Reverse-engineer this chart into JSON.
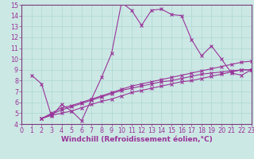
{
  "xlabel": "Windchill (Refroidissement éolien,°C)",
  "bg_color": "#cce8e4",
  "line_color": "#993399",
  "grid_color": "#aad8d4",
  "xlim": [
    0,
    23
  ],
  "ylim": [
    4,
    15
  ],
  "xticks": [
    0,
    1,
    2,
    3,
    4,
    5,
    6,
    7,
    8,
    9,
    10,
    11,
    12,
    13,
    14,
    15,
    16,
    17,
    18,
    19,
    20,
    21,
    22,
    23
  ],
  "yticks": [
    4,
    5,
    6,
    7,
    8,
    9,
    10,
    11,
    12,
    13,
    14,
    15
  ],
  "curve1_x": [
    1,
    2,
    3,
    4,
    5,
    6,
    7,
    8,
    9,
    10,
    11,
    12,
    13,
    14,
    15,
    16,
    17,
    18,
    19,
    20,
    21,
    22,
    23
  ],
  "curve1_y": [
    8.5,
    7.7,
    4.7,
    5.8,
    5.2,
    4.3,
    6.3,
    8.3,
    10.5,
    15.2,
    14.5,
    13.1,
    14.5,
    14.6,
    14.1,
    14.0,
    11.8,
    10.3,
    11.2,
    10.0,
    8.7,
    8.5,
    9.0
  ],
  "curve2_x": [
    2,
    3,
    4,
    5,
    6,
    7,
    8,
    9,
    10,
    11,
    12,
    13,
    14,
    15,
    16,
    17,
    18,
    19,
    20,
    21,
    22,
    23
  ],
  "curve2_y": [
    4.5,
    4.8,
    5.0,
    5.2,
    5.5,
    5.8,
    6.1,
    6.3,
    6.6,
    6.9,
    7.1,
    7.3,
    7.5,
    7.7,
    7.9,
    8.0,
    8.2,
    8.4,
    8.6,
    8.8,
    9.0,
    9.0
  ],
  "curve3_x": [
    2,
    3,
    4,
    5,
    6,
    7,
    8,
    9,
    10,
    11,
    12,
    13,
    14,
    15,
    16,
    17,
    18,
    19,
    20,
    21,
    22,
    23
  ],
  "curve3_y": [
    4.5,
    4.9,
    5.3,
    5.6,
    5.9,
    6.2,
    6.5,
    6.8,
    7.1,
    7.3,
    7.5,
    7.7,
    7.9,
    8.0,
    8.2,
    8.4,
    8.6,
    8.7,
    8.8,
    8.9,
    9.0,
    9.0
  ],
  "curve4_x": [
    2,
    3,
    4,
    5,
    6,
    7,
    8,
    9,
    10,
    11,
    12,
    13,
    14,
    15,
    16,
    17,
    18,
    19,
    20,
    21,
    22,
    23
  ],
  "curve4_y": [
    4.5,
    5.0,
    5.5,
    5.7,
    6.0,
    6.3,
    6.6,
    6.9,
    7.2,
    7.5,
    7.7,
    7.9,
    8.1,
    8.3,
    8.5,
    8.7,
    8.9,
    9.1,
    9.3,
    9.5,
    9.7,
    9.8
  ],
  "tick_fontsize": 5.8,
  "label_fontsize": 6.5,
  "spine_color": "#7a3a7a"
}
